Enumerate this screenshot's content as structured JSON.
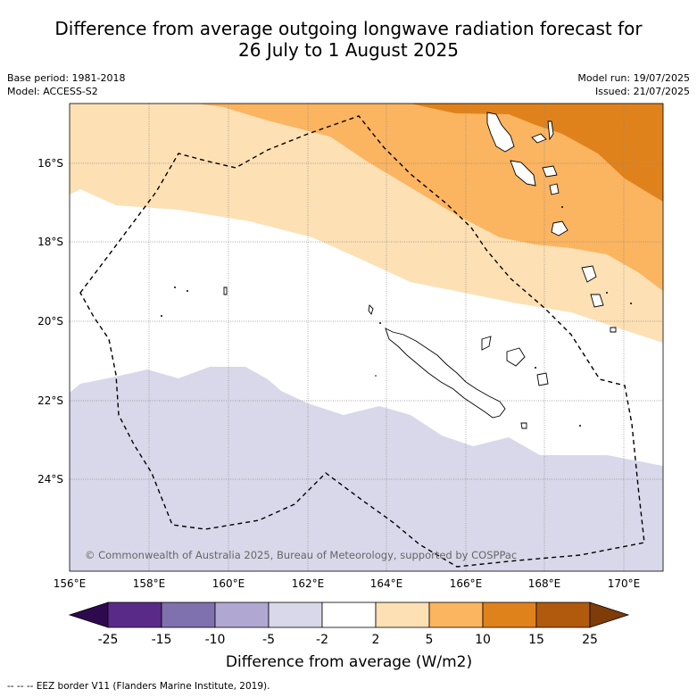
{
  "title_line1": "Difference from average outgoing longwave radiation forecast for",
  "title_line2": "26 July to 1 August 2025",
  "base_period": "Base period: 1981-2018",
  "model": "Model: ACCESS-S2",
  "model_run": "Model run: 19/07/2025",
  "issued": "Issued: 21/07/2025",
  "copyright": "© Commonwealth of Australia 2025, Bureau of Meteorology, supported by COSPPac",
  "lat_labels": [
    "16°S",
    "18°S",
    "20°S",
    "22°S",
    "24°S"
  ],
  "lon_labels": [
    "156°E",
    "158°E",
    "160°E",
    "162°E",
    "164°E",
    "166°E",
    "168°E",
    "170°E"
  ],
  "colorbar": {
    "ticks": [
      "-25",
      "-15",
      "-10",
      "-5",
      "-2",
      "2",
      "5",
      "10",
      "15",
      "25"
    ],
    "colors": [
      "#2d0a4e",
      "#5a2a88",
      "#7f70ae",
      "#b0a8d2",
      "#d8d8ea",
      "#ffffff",
      "#fde0b4",
      "#fbb460",
      "#e0821c",
      "#b15a0e",
      "#7f3b08"
    ],
    "label": "Difference from average (W/m2)"
  },
  "footer": "--  --  -- EEZ border V11 (Flanders Marine Institute, 2019)."
}
